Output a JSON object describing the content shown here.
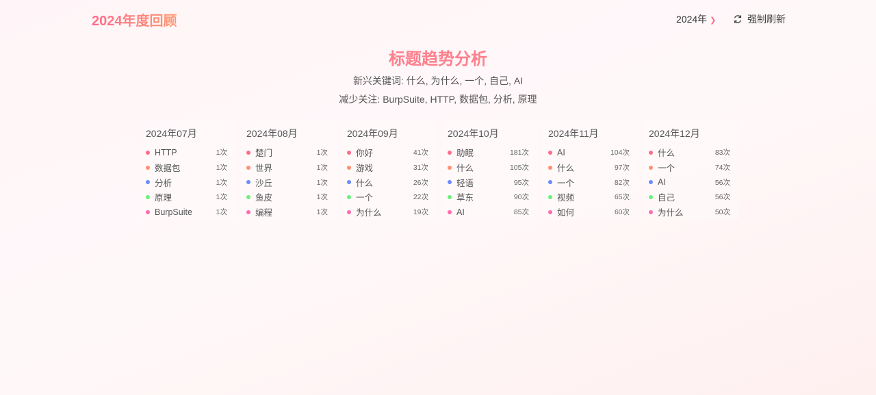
{
  "header": {
    "logo": "2024年度回顾",
    "year_select": "2024年",
    "refresh_label": "强制刷新"
  },
  "main": {
    "title": "标题趋势分析",
    "emerging": "新兴关键词: 什么, 为什么, 一个, 自己, AI",
    "declining": "减少关注: BurpSuite, HTTP, 数据包, 分析, 原理"
  },
  "colors": {
    "accent": "#ff6b8b",
    "dots": [
      "#ff6b8b",
      "#ff9070",
      "#6b8bff",
      "#6bf07b",
      "#ff6bab"
    ]
  },
  "months": [
    {
      "label": "2024年07月",
      "items": [
        {
          "word": "HTTP",
          "count": "1次"
        },
        {
          "word": "数据包",
          "count": "1次"
        },
        {
          "word": "分析",
          "count": "1次"
        },
        {
          "word": "原理",
          "count": "1次"
        },
        {
          "word": "BurpSuite",
          "count": "1次"
        }
      ]
    },
    {
      "label": "2024年08月",
      "items": [
        {
          "word": "楚门",
          "count": "1次"
        },
        {
          "word": "世界",
          "count": "1次"
        },
        {
          "word": "沙丘",
          "count": "1次"
        },
        {
          "word": "鱼皮",
          "count": "1次"
        },
        {
          "word": "编程",
          "count": "1次"
        }
      ]
    },
    {
      "label": "2024年09月",
      "items": [
        {
          "word": "你好",
          "count": "41次"
        },
        {
          "word": "游戏",
          "count": "31次"
        },
        {
          "word": "什么",
          "count": "26次"
        },
        {
          "word": "一个",
          "count": "22次"
        },
        {
          "word": "为什么",
          "count": "19次"
        }
      ]
    },
    {
      "label": "2024年10月",
      "items": [
        {
          "word": "助眠",
          "count": "181次"
        },
        {
          "word": "什么",
          "count": "105次"
        },
        {
          "word": "轻语",
          "count": "95次"
        },
        {
          "word": "草东",
          "count": "90次"
        },
        {
          "word": "AI",
          "count": "85次"
        }
      ]
    },
    {
      "label": "2024年11月",
      "items": [
        {
          "word": "AI",
          "count": "104次"
        },
        {
          "word": "什么",
          "count": "97次"
        },
        {
          "word": "一个",
          "count": "82次"
        },
        {
          "word": "视频",
          "count": "65次"
        },
        {
          "word": "如何",
          "count": "60次"
        }
      ]
    },
    {
      "label": "2024年12月",
      "items": [
        {
          "word": "什么",
          "count": "83次"
        },
        {
          "word": "一个",
          "count": "74次"
        },
        {
          "word": "AI",
          "count": "56次"
        },
        {
          "word": "自己",
          "count": "56次"
        },
        {
          "word": "为什么",
          "count": "50次"
        }
      ]
    }
  ]
}
